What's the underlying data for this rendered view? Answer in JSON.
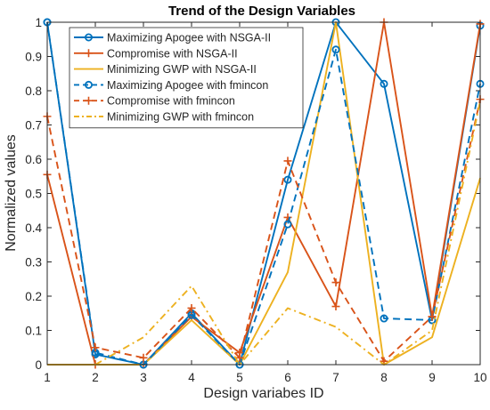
{
  "chart_data": {
    "type": "line",
    "title": "Trend of the Design Variables",
    "xlabel": "Design variabes ID",
    "ylabel": "Normalized values",
    "x": [
      1,
      2,
      3,
      4,
      5,
      6,
      7,
      8,
      9,
      10
    ],
    "xlim": [
      1,
      10
    ],
    "ylim": [
      0,
      1
    ],
    "xticks": [
      1,
      2,
      3,
      4,
      5,
      6,
      7,
      8,
      9,
      10
    ],
    "yticks": [
      0,
      0.1,
      0.2,
      0.3,
      0.4,
      0.5,
      0.6,
      0.7,
      0.8,
      0.9,
      1
    ],
    "ytick_labels": [
      "0",
      "0.1",
      "0.2",
      "0.3",
      "0.4",
      "0.5",
      "0.6",
      "0.7",
      "0.8",
      "0.9",
      "1"
    ],
    "grid": false,
    "legend_position": "top-left",
    "series": [
      {
        "name": "Maximizing Apogee with NSGA-II",
        "color": "#0072bd",
        "line_style": "solid",
        "marker": "circle",
        "values": [
          1.0,
          0.03,
          0.0,
          0.15,
          0.0,
          0.54,
          1.0,
          0.82,
          0.13,
          0.99
        ]
      },
      {
        "name": "Compromise with NSGA-II",
        "color": "#d95319",
        "line_style": "solid",
        "marker": "plus",
        "values": [
          0.555,
          0.0,
          0.0,
          0.14,
          0.035,
          0.43,
          0.17,
          1.0,
          0.14,
          0.995
        ]
      },
      {
        "name": "Minimizing GWP with NSGA-II",
        "color": "#edb120",
        "line_style": "solid",
        "marker": "none",
        "values": [
          0.0,
          0.0,
          0.0,
          0.13,
          0.0,
          0.27,
          1.0,
          0.0,
          0.08,
          0.545
        ]
      },
      {
        "name": "Maximizing Apogee with fmincon",
        "color": "#0072bd",
        "line_style": "dashed",
        "marker": "circle",
        "values": [
          1.0,
          0.035,
          0.0,
          0.145,
          0.0,
          0.41,
          0.92,
          0.135,
          0.13,
          0.82
        ]
      },
      {
        "name": "Compromise with fmincon",
        "color": "#d95319",
        "line_style": "dashed",
        "marker": "plus",
        "values": [
          0.725,
          0.05,
          0.02,
          0.165,
          0.02,
          0.595,
          0.24,
          0.01,
          0.14,
          0.775
        ]
      },
      {
        "name": "Minimizing GWP with fmincon",
        "color": "#edb120",
        "line_style": "dashdot",
        "marker": "none",
        "values": [
          0.0,
          0.0,
          0.08,
          0.23,
          0.0,
          0.165,
          0.11,
          0.0,
          0.1,
          0.77
        ]
      }
    ]
  }
}
